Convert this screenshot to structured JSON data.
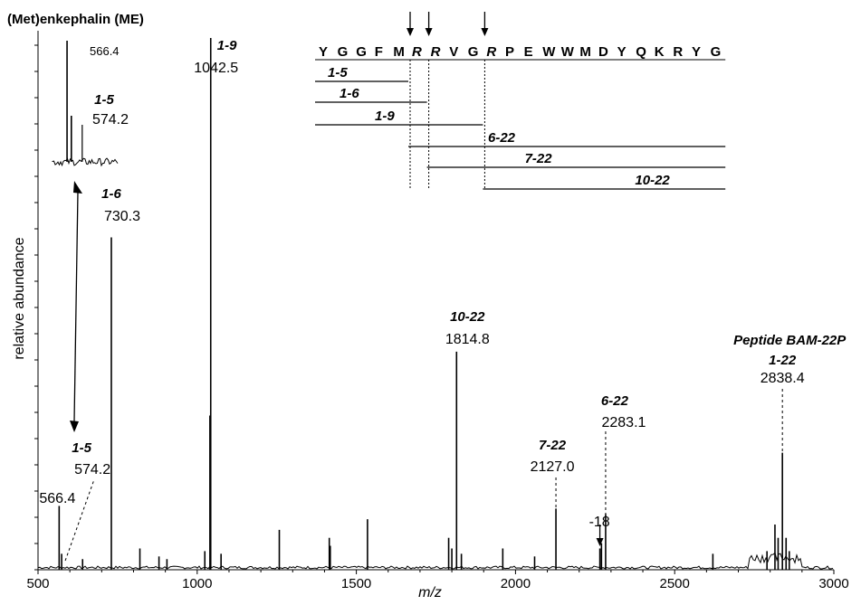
{
  "chart_data": {
    "type": "line",
    "title": "(Met)enkephalin (ME)",
    "xlabel": "m/z",
    "ylabel": "relative abundance",
    "xlim": [
      500,
      3000
    ],
    "x_ticks": [
      "500",
      "1000",
      "1500",
      "2000",
      "2500",
      "3000"
    ],
    "ylim": [
      0,
      1
    ],
    "grid": false,
    "peaks": [
      {
        "mz": 566.4,
        "rel": 0.12,
        "label_mass": "566.4"
      },
      {
        "mz": 574.2,
        "rel": 0.03,
        "label_frag": "1-5",
        "label_mass": "574.2"
      },
      {
        "mz": 730.3,
        "rel": 0.625,
        "label_frag": "1-6",
        "label_mass": "730.3"
      },
      {
        "mz": 1042.5,
        "rel": 1.0,
        "label_frag": "1-9",
        "label_mass": "1042.5"
      },
      {
        "mz": 1814.8,
        "rel": 0.41,
        "label_frag": "10-22",
        "label_mass": "1814.8"
      },
      {
        "mz": 2127.0,
        "rel": 0.115,
        "label_frag": "7-22",
        "label_mass": "2127.0"
      },
      {
        "mz": 2265.0,
        "rel": 0.04,
        "label_mass": "-18"
      },
      {
        "mz": 2283.1,
        "rel": 0.105,
        "label_frag": "6-22",
        "label_mass": "2283.1"
      },
      {
        "mz": 2838.4,
        "rel": 0.22,
        "label_frag": "1-22",
        "label_mass": "2838.4"
      }
    ],
    "minor_peaks": [
      {
        "mz": 640,
        "rel": 0.02
      },
      {
        "mz": 820,
        "rel": 0.04
      },
      {
        "mz": 880,
        "rel": 0.025
      },
      {
        "mz": 905,
        "rel": 0.02
      },
      {
        "mz": 1024,
        "rel": 0.035
      },
      {
        "mz": 1040,
        "rel": 0.29
      },
      {
        "mz": 1075,
        "rel": 0.03
      },
      {
        "mz": 1258,
        "rel": 0.075
      },
      {
        "mz": 1415,
        "rel": 0.06
      },
      {
        "mz": 1418,
        "rel": 0.045
      },
      {
        "mz": 1535,
        "rel": 0.095
      },
      {
        "mz": 1790,
        "rel": 0.06
      },
      {
        "mz": 1800,
        "rel": 0.04
      },
      {
        "mz": 1830,
        "rel": 0.03
      },
      {
        "mz": 1960,
        "rel": 0.04
      },
      {
        "mz": 2060,
        "rel": 0.025
      },
      {
        "mz": 2270,
        "rel": 0.05
      },
      {
        "mz": 2620,
        "rel": 0.03
      },
      {
        "mz": 2790,
        "rel": 0.035
      },
      {
        "mz": 2815,
        "rel": 0.085
      },
      {
        "mz": 2825,
        "rel": 0.06
      },
      {
        "mz": 2850,
        "rel": 0.06
      },
      {
        "mz": 2860,
        "rel": 0.035
      }
    ],
    "inset": {
      "x_mz": [
        540,
        660
      ],
      "peaks": [
        {
          "mz": 566.4,
          "label_mass": "566.4"
        },
        {
          "mz": 574.2,
          "label_frag": "1-5",
          "label_mass": "574.2"
        }
      ]
    },
    "peptide_label": "Peptide BAM-22P",
    "sequence": [
      "Y",
      "G",
      "G",
      "F",
      "M",
      "R",
      "R",
      "V",
      "G",
      "R",
      "P",
      "E",
      "W",
      "W",
      "M",
      "D",
      "Y",
      "Q",
      "K",
      "R",
      "Y",
      "G"
    ],
    "cleavage_after": [
      5,
      6,
      9
    ],
    "fragments": [
      {
        "label": "1-5",
        "start": 1,
        "end": 5
      },
      {
        "label": "1-6",
        "start": 1,
        "end": 6
      },
      {
        "label": "1-9",
        "start": 1,
        "end": 9
      },
      {
        "label": "6-22",
        "start": 6,
        "end": 22
      },
      {
        "label": "7-22",
        "start": 7,
        "end": 22
      },
      {
        "label": "10-22",
        "start": 10,
        "end": 22
      }
    ]
  }
}
